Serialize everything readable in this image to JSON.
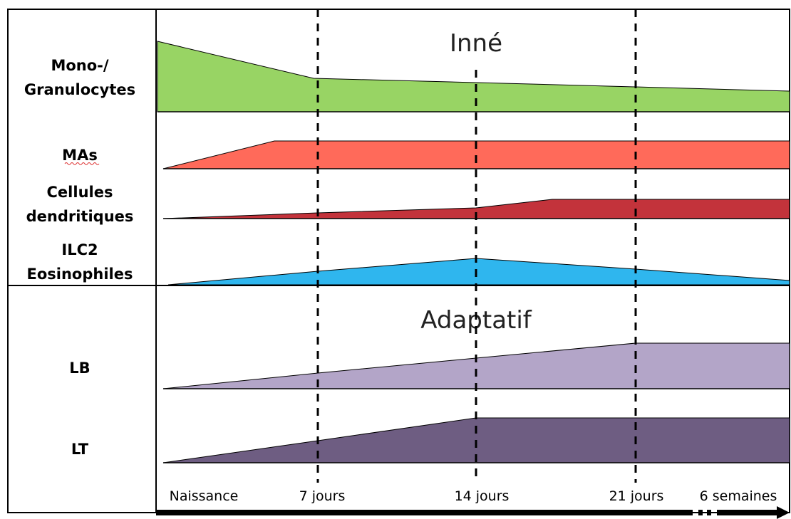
{
  "colors": {
    "mono_granulocytes": "#98d464",
    "mas": "#ff6a5a",
    "cellules_dendritiques": "#c3333b",
    "ilc2_eosinophiles": "#2fb6ee",
    "lb": "#b3a5c8",
    "lt": "#6e5d82"
  },
  "sections": {
    "inne": "Inné",
    "adaptatif": "Adaptatif"
  },
  "rows": [
    {
      "id": "mono",
      "label_lines": [
        "Mono-/",
        "Granulocytes"
      ]
    },
    {
      "id": "mas",
      "label_lines": [
        "MAs"
      ]
    },
    {
      "id": "dc",
      "label_lines": [
        "Cellules",
        "dendritiques"
      ]
    },
    {
      "id": "ilc2",
      "label_lines": [
        "ILC2",
        "Eosinophiles"
      ]
    },
    {
      "id": "lb",
      "label_lines": [
        "LB"
      ]
    },
    {
      "id": "lt",
      "label_lines": [
        "LT"
      ]
    }
  ],
  "timeline": {
    "ticks": [
      "Naissance",
      "7 jours",
      "14 jours",
      "21 jours",
      "6 semaines"
    ]
  }
}
